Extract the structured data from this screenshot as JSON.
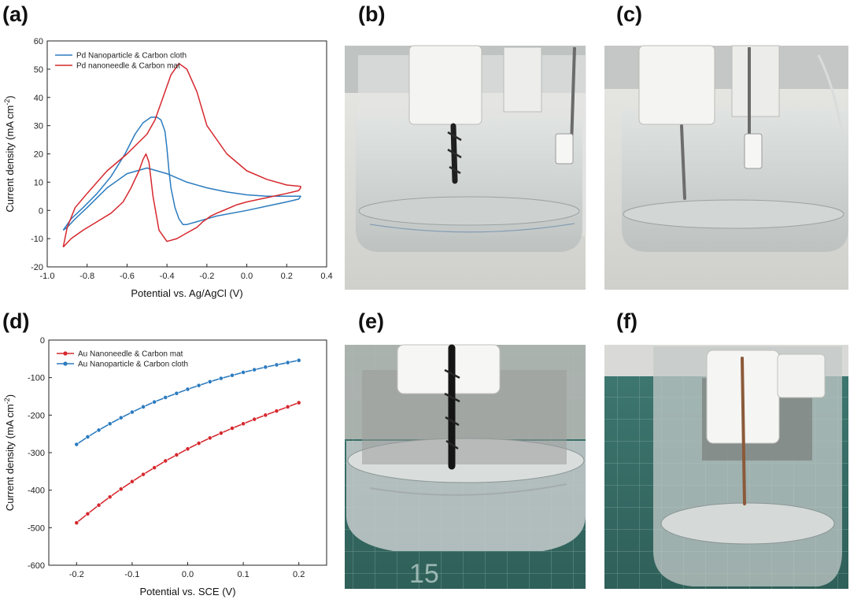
{
  "panel_labels": {
    "a": "(a)",
    "b": "(b)",
    "c": "(c)",
    "d": "(d)",
    "e": "(e)",
    "f": "(f)"
  },
  "colors": {
    "blue": "#2b7bbf",
    "red": "#d6282e",
    "axis": "#222222"
  },
  "chart_data": [
    {
      "type": "line",
      "title": "",
      "xlabel": "Potential vs. Ag/AgCl (V)",
      "ylabel_main": "Current density (mA cm",
      "ylabel_sup": "-2",
      "ylabel_end": ")",
      "xlim": [
        -1.0,
        0.4
      ],
      "ylim": [
        -20,
        60
      ],
      "xticks": [
        -1.0,
        -0.8,
        -0.6,
        -0.4,
        -0.2,
        0.0,
        0.2,
        0.4
      ],
      "xtick_labels": [
        "-1.0",
        "-0.8",
        "-0.6",
        "-0.4",
        "-0.2",
        "0.0",
        "0.2",
        "0.4"
      ],
      "yticks": [
        -20,
        -10,
        0,
        10,
        20,
        30,
        40,
        50,
        60
      ],
      "ytick_labels": [
        "-20",
        "-10",
        "0",
        "10",
        "20",
        "30",
        "40",
        "50",
        "60"
      ],
      "legend_position": "top-left",
      "series": [
        {
          "name": "Pd Nanoparticle & Carbon cloth",
          "color": "#2b7bbf",
          "x": [
            -0.92,
            -0.88,
            -0.82,
            -0.75,
            -0.68,
            -0.61,
            -0.56,
            -0.52,
            -0.48,
            -0.45,
            -0.43,
            -0.41,
            -0.4,
            -0.39,
            -0.38,
            -0.36,
            -0.34,
            -0.32,
            -0.3,
            -0.25,
            -0.15,
            0.0,
            0.1,
            0.2,
            0.26,
            0.27,
            0.26,
            0.2,
            0.1,
            0.0,
            -0.1,
            -0.2,
            -0.3,
            -0.4,
            -0.5,
            -0.6,
            -0.7,
            -0.8,
            -0.86,
            -0.9,
            -0.92
          ],
          "y": [
            -7,
            -3,
            1,
            6,
            12,
            20,
            27,
            31,
            33,
            33,
            32,
            28,
            22,
            14,
            8,
            1,
            -3,
            -5,
            -5,
            -4,
            -2,
            0,
            1.5,
            3,
            4,
            5,
            5,
            5,
            5,
            5.5,
            6.5,
            8,
            10,
            13,
            15,
            13,
            8,
            1,
            -3,
            -6,
            -7
          ]
        },
        {
          "name": "Pd nanoneedle & Carbon mat",
          "color": "#d6282e",
          "x": [
            -0.92,
            -0.88,
            -0.82,
            -0.75,
            -0.68,
            -0.62,
            -0.58,
            -0.54,
            -0.52,
            -0.505,
            -0.49,
            -0.47,
            -0.44,
            -0.4,
            -0.35,
            -0.3,
            -0.25,
            -0.22,
            -0.2,
            -0.18,
            -0.15,
            -0.1,
            -0.05,
            0.0,
            0.1,
            0.2,
            0.26,
            0.27,
            0.27,
            0.2,
            0.1,
            0.0,
            -0.1,
            -0.2,
            -0.25,
            -0.3,
            -0.34,
            -0.38,
            -0.42,
            -0.46,
            -0.5,
            -0.6,
            -0.7,
            -0.8,
            -0.86,
            -0.9,
            -0.92
          ],
          "y": [
            -13,
            -10,
            -7,
            -4,
            -1,
            3,
            8,
            14,
            18,
            20,
            17,
            5,
            -7,
            -11,
            -10,
            -8,
            -6,
            -4,
            -3,
            -2,
            -1,
            0.5,
            2,
            3,
            4.5,
            6,
            7,
            8,
            8.5,
            9,
            11,
            14,
            20,
            30,
            42,
            50,
            52,
            48,
            40,
            32,
            27,
            20,
            14,
            6,
            1,
            -6,
            -13
          ]
        }
      ]
    },
    {
      "type": "line",
      "title": "",
      "xlabel": "Potential vs. SCE (V)",
      "ylabel_main": "Current density (mA cm",
      "ylabel_sup": "-2",
      "ylabel_end": ")",
      "xlim": [
        -0.25,
        0.25
      ],
      "ylim": [
        -600,
        0
      ],
      "xticks": [
        -0.2,
        -0.1,
        0.0,
        0.1,
        0.2
      ],
      "xtick_labels": [
        "-0.2",
        "-0.1",
        "0.0",
        "0.1",
        "0.2"
      ],
      "yticks": [
        -600,
        -500,
        -400,
        -300,
        -200,
        -100,
        0
      ],
      "ytick_labels": [
        "-600",
        "-500",
        "-400",
        "-300",
        "-200",
        "-100",
        "0"
      ],
      "legend_position": "top-left",
      "series": [
        {
          "name": "Au Nanoneedle & Carbon mat",
          "color": "#d6282e",
          "x": [
            -0.2,
            -0.18,
            -0.16,
            -0.14,
            -0.12,
            -0.1,
            -0.08,
            -0.06,
            -0.04,
            -0.02,
            0.0,
            0.02,
            0.04,
            0.06,
            0.08,
            0.1,
            0.12,
            0.14,
            0.16,
            0.18,
            0.2
          ],
          "y": [
            -487,
            -463,
            -440,
            -418,
            -397,
            -377,
            -358,
            -340,
            -322,
            -306,
            -290,
            -275,
            -261,
            -248,
            -235,
            -223,
            -211,
            -200,
            -189,
            -178,
            -167
          ]
        },
        {
          "name": "Au Nanoparticle & Carbon cloth",
          "color": "#2b7bbf",
          "x": [
            -0.2,
            -0.18,
            -0.16,
            -0.14,
            -0.12,
            -0.1,
            -0.08,
            -0.06,
            -0.04,
            -0.02,
            0.0,
            0.02,
            0.04,
            0.06,
            0.08,
            0.1,
            0.12,
            0.14,
            0.16,
            0.18,
            0.2
          ],
          "y": [
            -278,
            -258,
            -240,
            -223,
            -207,
            -192,
            -178,
            -165,
            -153,
            -142,
            -131,
            -121,
            -111,
            -102,
            -94,
            -86,
            -79,
            -72,
            -66,
            -60,
            -54
          ]
        }
      ]
    }
  ]
}
